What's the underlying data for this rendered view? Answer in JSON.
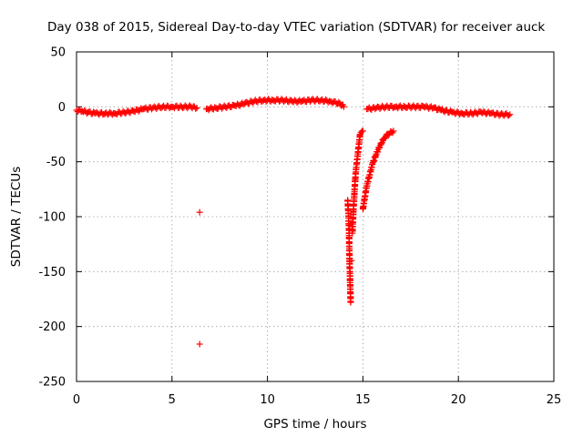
{
  "chart_data": {
    "type": "scatter",
    "title": "Day 038 of 2015, Sidereal Day-to-day VTEC variation (SDTVAR) for receiver auck",
    "xlabel": "GPS time / hours",
    "ylabel": "SDTVAR / TECUs",
    "xlim": [
      0,
      25
    ],
    "ylim": [
      -250,
      50
    ],
    "xticks": [
      "0",
      "5",
      "10",
      "15",
      "20",
      "25"
    ],
    "yticks": [
      "50",
      "0",
      "-50",
      "-100",
      "-150",
      "-200",
      "-250"
    ],
    "grid": true,
    "marker": "+",
    "color": "#ff0000",
    "series": [
      {
        "name": "SDTVAR",
        "points": [
          [
            0.0,
            -3
          ],
          [
            0.3,
            -4
          ],
          [
            0.6,
            -5
          ],
          [
            1.0,
            -6
          ],
          [
            1.5,
            -6
          ],
          [
            2.0,
            -6
          ],
          [
            2.5,
            -5
          ],
          [
            3.0,
            -4
          ],
          [
            3.5,
            -2
          ],
          [
            4.0,
            -1
          ],
          [
            4.5,
            0
          ],
          [
            5.0,
            0
          ],
          [
            5.5,
            0
          ],
          [
            6.0,
            0
          ],
          [
            6.3,
            -1
          ],
          [
            6.45,
            -96
          ],
          [
            6.45,
            -216
          ],
          [
            6.8,
            -2
          ],
          [
            7.3,
            -1
          ],
          [
            7.8,
            0
          ],
          [
            8.3,
            1
          ],
          [
            8.8,
            3
          ],
          [
            9.3,
            5
          ],
          [
            9.8,
            6
          ],
          [
            10.3,
            6
          ],
          [
            10.8,
            6
          ],
          [
            11.3,
            5
          ],
          [
            11.8,
            5
          ],
          [
            12.3,
            6
          ],
          [
            12.8,
            6
          ],
          [
            13.3,
            5
          ],
          [
            13.8,
            3
          ],
          [
            14.0,
            0
          ],
          [
            14.2,
            -85
          ],
          [
            14.25,
            -100
          ],
          [
            14.28,
            -120
          ],
          [
            14.3,
            -140
          ],
          [
            14.33,
            -160
          ],
          [
            14.36,
            -178
          ],
          [
            14.4,
            -140
          ],
          [
            14.45,
            -115
          ],
          [
            14.5,
            -95
          ],
          [
            14.55,
            -80
          ],
          [
            14.6,
            -65
          ],
          [
            14.65,
            -55
          ],
          [
            14.7,
            -48
          ],
          [
            14.85,
            -25
          ],
          [
            15.0,
            -22
          ],
          [
            15.0,
            -93
          ],
          [
            15.1,
            -82
          ],
          [
            15.2,
            -72
          ],
          [
            15.35,
            -62
          ],
          [
            15.5,
            -52
          ],
          [
            15.7,
            -43
          ],
          [
            15.9,
            -35
          ],
          [
            16.1,
            -29
          ],
          [
            16.3,
            -25
          ],
          [
            16.6,
            -22
          ],
          [
            15.2,
            -2
          ],
          [
            15.7,
            -1
          ],
          [
            16.2,
            0
          ],
          [
            16.7,
            0
          ],
          [
            17.2,
            0
          ],
          [
            17.7,
            0
          ],
          [
            18.2,
            0
          ],
          [
            18.7,
            -1
          ],
          [
            19.1,
            -3
          ],
          [
            19.7,
            -5
          ],
          [
            20.2,
            -6
          ],
          [
            20.7,
            -6
          ],
          [
            21.2,
            -5
          ],
          [
            21.7,
            -6
          ],
          [
            22.2,
            -7
          ],
          [
            22.7,
            -7
          ]
        ]
      }
    ]
  }
}
